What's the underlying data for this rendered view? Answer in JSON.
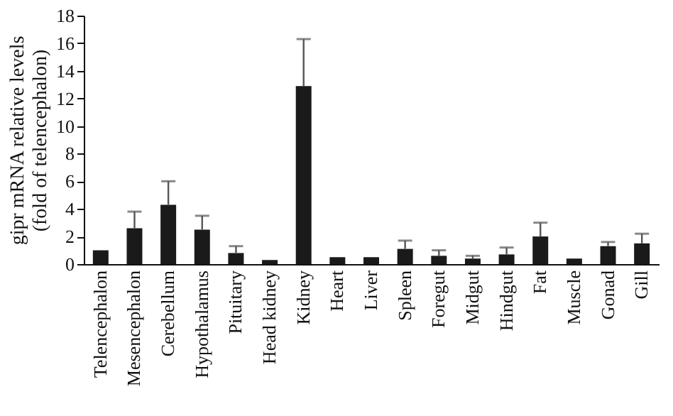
{
  "chart_data": {
    "type": "bar",
    "ylabel": "gipr mRNA relative levels\n(fold of telencephalon)",
    "categories": [
      "Telencephalon",
      "Mesencephalon",
      "Cerebellum",
      "Hypothalamus",
      "Pituitary",
      "Head kidney",
      "Kidney",
      "Heart",
      "Liver",
      "Spleen",
      "Foregut",
      "Midgut",
      "Hindgut",
      "Fat",
      "Muscle",
      "Gonad",
      "Gill"
    ],
    "values": [
      1.0,
      2.6,
      4.3,
      2.5,
      0.8,
      0.3,
      12.9,
      0.5,
      0.5,
      1.1,
      0.6,
      0.4,
      0.7,
      2.0,
      0.4,
      1.3,
      1.5
    ],
    "errors": [
      null,
      1.2,
      1.7,
      1.0,
      0.5,
      null,
      3.4,
      null,
      null,
      0.6,
      0.4,
      0.2,
      0.5,
      1.0,
      null,
      0.3,
      0.7
    ],
    "color": "#1a1a1a",
    "ylim": [
      0,
      18
    ],
    "yticks": [
      0,
      2,
      4,
      6,
      8,
      10,
      12,
      14,
      16,
      18
    ],
    "grid": false
  }
}
